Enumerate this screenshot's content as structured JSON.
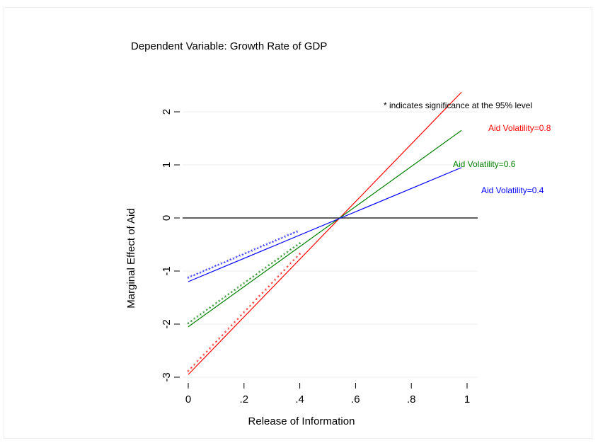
{
  "chart_data": {
    "type": "line",
    "title": "Dependent Variable: Growth Rate of GDP",
    "xlabel": "Release of Information",
    "ylabel": "Marginal Effect of Aid",
    "xlim": [
      0,
      1
    ],
    "ylim": [
      -3,
      2
    ],
    "x_ticks": [
      "0",
      ".2",
      ".4",
      ".6",
      ".8",
      "1"
    ],
    "y_ticks": [
      "-3",
      "-2",
      "-1",
      "0",
      "1",
      "2"
    ],
    "note": "* indicates significance at the 95% level",
    "series": [
      {
        "name": "Aid Volatility=0.8",
        "color": "#ff0000",
        "x": [
          0,
          0.98
        ],
        "y": [
          -2.95,
          2.37
        ],
        "sig_x": [
          0,
          0.4
        ],
        "sig_y": [
          -2.88,
          -0.67
        ]
      },
      {
        "name": "Aid Volatility=0.6",
        "color": "#008000",
        "x": [
          0,
          0.98
        ],
        "y": [
          -2.05,
          1.65
        ],
        "sig_x": [
          0,
          0.4
        ],
        "sig_y": [
          -1.98,
          -0.47
        ]
      },
      {
        "name": "Aid Volatility=0.4",
        "color": "#0000ff",
        "x": [
          0,
          0.98
        ],
        "y": [
          -1.2,
          0.95
        ],
        "sig_x": [
          0,
          0.39
        ],
        "sig_y": [
          -1.12,
          -0.25
        ]
      }
    ],
    "reference_line": {
      "y": 0,
      "color": "#000000"
    },
    "grid": true,
    "legend": "inline labels"
  }
}
